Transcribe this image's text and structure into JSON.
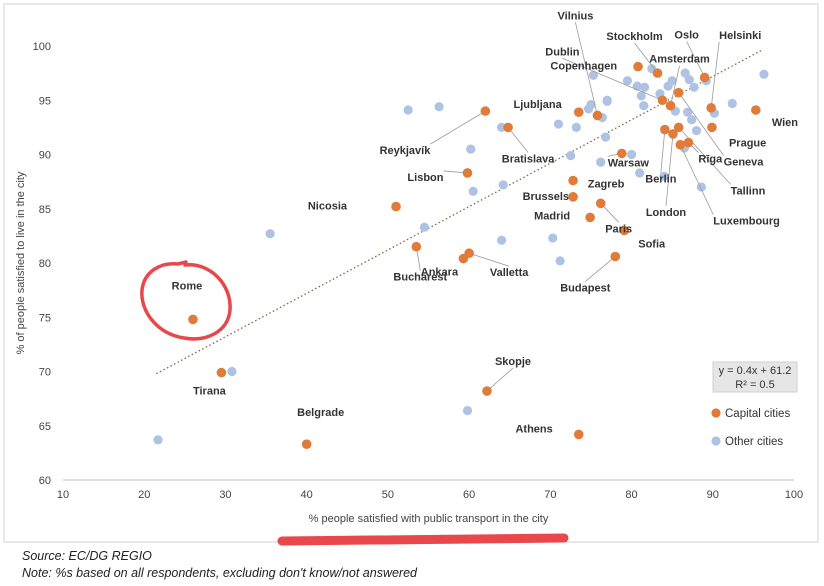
{
  "chart_data": {
    "type": "scatter",
    "title": "",
    "xlabel": "% people satisfied with public transport in the city",
    "ylabel": "% of people satisfied to live in the city",
    "xlim": [
      10,
      100
    ],
    "ylim": [
      60,
      100
    ],
    "xticks": [
      "10",
      "20",
      "30",
      "40",
      "50",
      "60",
      "70",
      "80",
      "90",
      "100"
    ],
    "yticks": [
      "60",
      "65",
      "70",
      "75",
      "80",
      "85",
      "90",
      "95",
      "100"
    ],
    "grid": false,
    "legend_position": "bottom-right",
    "colors": {
      "capital": "#E07B39",
      "other": "#AEC3E3",
      "trend": "#7A6A4A",
      "annotation": "#E8474C"
    },
    "trendline": {
      "equation": "y = 0.4x + 61.2",
      "r2": "R² = 0.5",
      "x_range": [
        21.5,
        96
      ]
    },
    "series": [
      {
        "name": "Capital cities",
        "points": [
          {
            "x": 26,
            "y": 74.8,
            "label": "Rome"
          },
          {
            "x": 29.5,
            "y": 69.9,
            "label": "Tirana"
          },
          {
            "x": 40,
            "y": 63.3,
            "label": "Belgrade"
          },
          {
            "x": 51,
            "y": 85.2,
            "label": "Nicosia"
          },
          {
            "x": 53.5,
            "y": 81.5,
            "label": "Bucharest"
          },
          {
            "x": 59.8,
            "y": 88.3,
            "label": "Lisbon"
          },
          {
            "x": 59.3,
            "y": 80.4,
            "label": "Ankara"
          },
          {
            "x": 60,
            "y": 80.9,
            "label": "Valletta"
          },
          {
            "x": 62,
            "y": 94.0,
            "label": "Reykjavík"
          },
          {
            "x": 64.8,
            "y": 92.5,
            "label": "Bratislava"
          },
          {
            "x": 62.2,
            "y": 68.2,
            "label": "Skopje"
          },
          {
            "x": 72.8,
            "y": 87.6,
            "label": "Zagreb"
          },
          {
            "x": 72.8,
            "y": 86.1,
            "label": "Brussels"
          },
          {
            "x": 74.9,
            "y": 84.2,
            "label": "Madrid"
          },
          {
            "x": 76.2,
            "y": 85.5,
            "label": "Paris"
          },
          {
            "x": 73.5,
            "y": 64.2,
            "label": "Athens"
          },
          {
            "x": 73.5,
            "y": 93.9,
            "label": "Ljubljana"
          },
          {
            "x": 75.8,
            "y": 93.6,
            "label": "Vilnius"
          },
          {
            "x": 78,
            "y": 80.6,
            "label": "Budapest"
          },
          {
            "x": 79.1,
            "y": 83.0,
            "label": "Sofia"
          },
          {
            "x": 78.8,
            "y": 90.1,
            "label": "Warsaw"
          },
          {
            "x": 80.8,
            "y": 98.1,
            "label": "Copenhagen"
          },
          {
            "x": 83.2,
            "y": 97.5,
            "label": "Stockholm"
          },
          {
            "x": 83.8,
            "y": 95.0,
            "label": "Dublin"
          },
          {
            "x": 84.8,
            "y": 94.5,
            "label": "Amsterdam"
          },
          {
            "x": 84.1,
            "y": 92.3,
            "label": "Berlin"
          },
          {
            "x": 85.1,
            "y": 91.9,
            "label": "London"
          },
          {
            "x": 85.8,
            "y": 92.5,
            "label": "Tallinn"
          },
          {
            "x": 86.0,
            "y": 90.9,
            "label": "Luxembourg"
          },
          {
            "x": 85.8,
            "y": 95.7,
            "label": "Geneva"
          },
          {
            "x": 89,
            "y": 97.1,
            "label": "Oslo"
          },
          {
            "x": 89.8,
            "y": 94.3,
            "label": "Helsinki"
          },
          {
            "x": 89.9,
            "y": 92.5,
            "label": "Prague"
          },
          {
            "x": 95.3,
            "y": 94.1,
            "label": "Wien"
          },
          {
            "x": 87.0,
            "y": 91.1,
            "label": "Rīga"
          }
        ]
      },
      {
        "name": "Other cities",
        "points": [
          {
            "x": 21.7,
            "y": 63.7
          },
          {
            "x": 30.8,
            "y": 70.0
          },
          {
            "x": 35.5,
            "y": 82.7
          },
          {
            "x": 52.5,
            "y": 94.1
          },
          {
            "x": 56.3,
            "y": 94.4
          },
          {
            "x": 54.5,
            "y": 83.3
          },
          {
            "x": 59.8,
            "y": 66.4
          },
          {
            "x": 60.2,
            "y": 90.5
          },
          {
            "x": 60.5,
            "y": 86.6
          },
          {
            "x": 64.0,
            "y": 92.5
          },
          {
            "x": 64.2,
            "y": 87.2
          },
          {
            "x": 64.0,
            "y": 82.1
          },
          {
            "x": 70.3,
            "y": 82.3
          },
          {
            "x": 71.2,
            "y": 80.2
          },
          {
            "x": 71.0,
            "y": 92.8
          },
          {
            "x": 72.5,
            "y": 89.9
          },
          {
            "x": 73.2,
            "y": 92.5
          },
          {
            "x": 74.7,
            "y": 94.2
          },
          {
            "x": 75.3,
            "y": 97.3
          },
          {
            "x": 75.0,
            "y": 94.6
          },
          {
            "x": 76.2,
            "y": 89.3
          },
          {
            "x": 76.8,
            "y": 91.6
          },
          {
            "x": 77.0,
            "y": 94.9
          },
          {
            "x": 76.4,
            "y": 93.4
          },
          {
            "x": 79.5,
            "y": 96.8
          },
          {
            "x": 80.7,
            "y": 96.3
          },
          {
            "x": 81.2,
            "y": 95.4
          },
          {
            "x": 81.5,
            "y": 94.5
          },
          {
            "x": 80.0,
            "y": 90.0
          },
          {
            "x": 81.0,
            "y": 88.3
          },
          {
            "x": 81.6,
            "y": 96.2
          },
          {
            "x": 82.5,
            "y": 97.9
          },
          {
            "x": 83.5,
            "y": 95.6
          },
          {
            "x": 84.5,
            "y": 96.3
          },
          {
            "x": 85.0,
            "y": 96.8
          },
          {
            "x": 85.4,
            "y": 94.0
          },
          {
            "x": 86.6,
            "y": 97.5
          },
          {
            "x": 87.1,
            "y": 96.9
          },
          {
            "x": 87.7,
            "y": 96.2
          },
          {
            "x": 86.9,
            "y": 93.9
          },
          {
            "x": 87.4,
            "y": 93.2
          },
          {
            "x": 86.5,
            "y": 90.6
          },
          {
            "x": 88.0,
            "y": 92.2
          },
          {
            "x": 88.6,
            "y": 87.0
          },
          {
            "x": 89.2,
            "y": 96.8
          },
          {
            "x": 90.2,
            "y": 93.8
          },
          {
            "x": 92.4,
            "y": 94.7
          },
          {
            "x": 96.3,
            "y": 97.4
          },
          {
            "x": 77.0,
            "y": 95.0
          },
          {
            "x": 84.0,
            "y": 88.0
          }
        ]
      }
    ]
  },
  "footer": {
    "source": "Source: EC/DG REGIO",
    "note": "Note: %s based on all respondents, excluding don't know/not answered"
  }
}
